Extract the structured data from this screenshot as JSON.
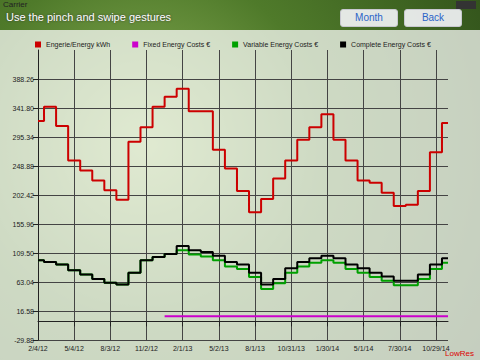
{
  "chart_data": {
    "type": "line",
    "title": "Use the pinch and swipe gestures",
    "annotations": [
      "Carrier",
      "Month",
      "Back",
      "LowRes"
    ],
    "categories": [
      "2/4/12",
      null,
      null,
      "5/4/12",
      null,
      null,
      "8/3/12",
      null,
      null,
      "11/2/12",
      null,
      null,
      "2/1/13",
      null,
      null,
      "5/2/13",
      null,
      null,
      "8/1/13",
      null,
      null,
      "10/31/13",
      null,
      null,
      "1/30/14",
      null,
      null,
      "5/1/14",
      null,
      null,
      "7/30/14",
      null,
      null,
      "10/29/14",
      null
    ],
    "series": [
      {
        "name": "Engerie/Energy kWh",
        "color": "#cc0000",
        "values": [
          321,
          344,
          313,
          258,
          242,
          226,
          210,
          195,
          288,
          311,
          344,
          360,
          373,
          337,
          337,
          275,
          245,
          209,
          175,
          196,
          229,
          258,
          291,
          311,
          332,
          291,
          258,
          226,
          222,
          206,
          185,
          187,
          209,
          271,
          318
        ]
      },
      {
        "name": "Fixed Energy Costs €",
        "color": "#cc00cc",
        "values": [
          null,
          null,
          null,
          null,
          null,
          null,
          null,
          null,
          null,
          null,
          null,
          8,
          8,
          8,
          8,
          8,
          8,
          8,
          8,
          8,
          8,
          8,
          8,
          8,
          8,
          8,
          8,
          8,
          8,
          8,
          8,
          8,
          8,
          8,
          8
        ]
      },
      {
        "name": "Variable Energy Costs €",
        "color": "#00a000",
        "values": [
          98,
          95,
          91,
          82,
          75,
          68,
          62,
          59,
          78,
          98,
          103,
          108,
          114,
          107,
          104,
          98,
          88,
          84,
          71,
          52,
          61,
          78,
          88,
          94,
          98,
          94,
          84,
          78,
          71,
          65,
          58,
          58,
          68,
          84,
          94
        ]
      },
      {
        "name": "Complete Energy Costs €",
        "color": "#000000",
        "values": [
          98,
          95,
          91,
          82,
          75,
          68,
          62,
          59,
          78,
          98,
          103,
          108,
          121,
          114,
          111,
          105,
          95,
          91,
          78,
          59,
          68,
          85,
          95,
          101,
          105,
          101,
          91,
          85,
          78,
          72,
          65,
          65,
          75,
          91,
          101
        ]
      }
    ],
    "ylim": [
      -29.88,
      435
    ],
    "yticks": [
      -29.88,
      {
        "value": 16.58,
        "label": "16.58"
      },
      {
        "value": 63.04,
        "label": "63.04"
      },
      {
        "value": 109.5,
        "label": "109.50"
      },
      155.96,
      202.42,
      248.88,
      295.34,
      {
        "value": 341.8,
        "label": "341.80"
      },
      388.26
    ],
    "grid": true,
    "legend": "top"
  }
}
